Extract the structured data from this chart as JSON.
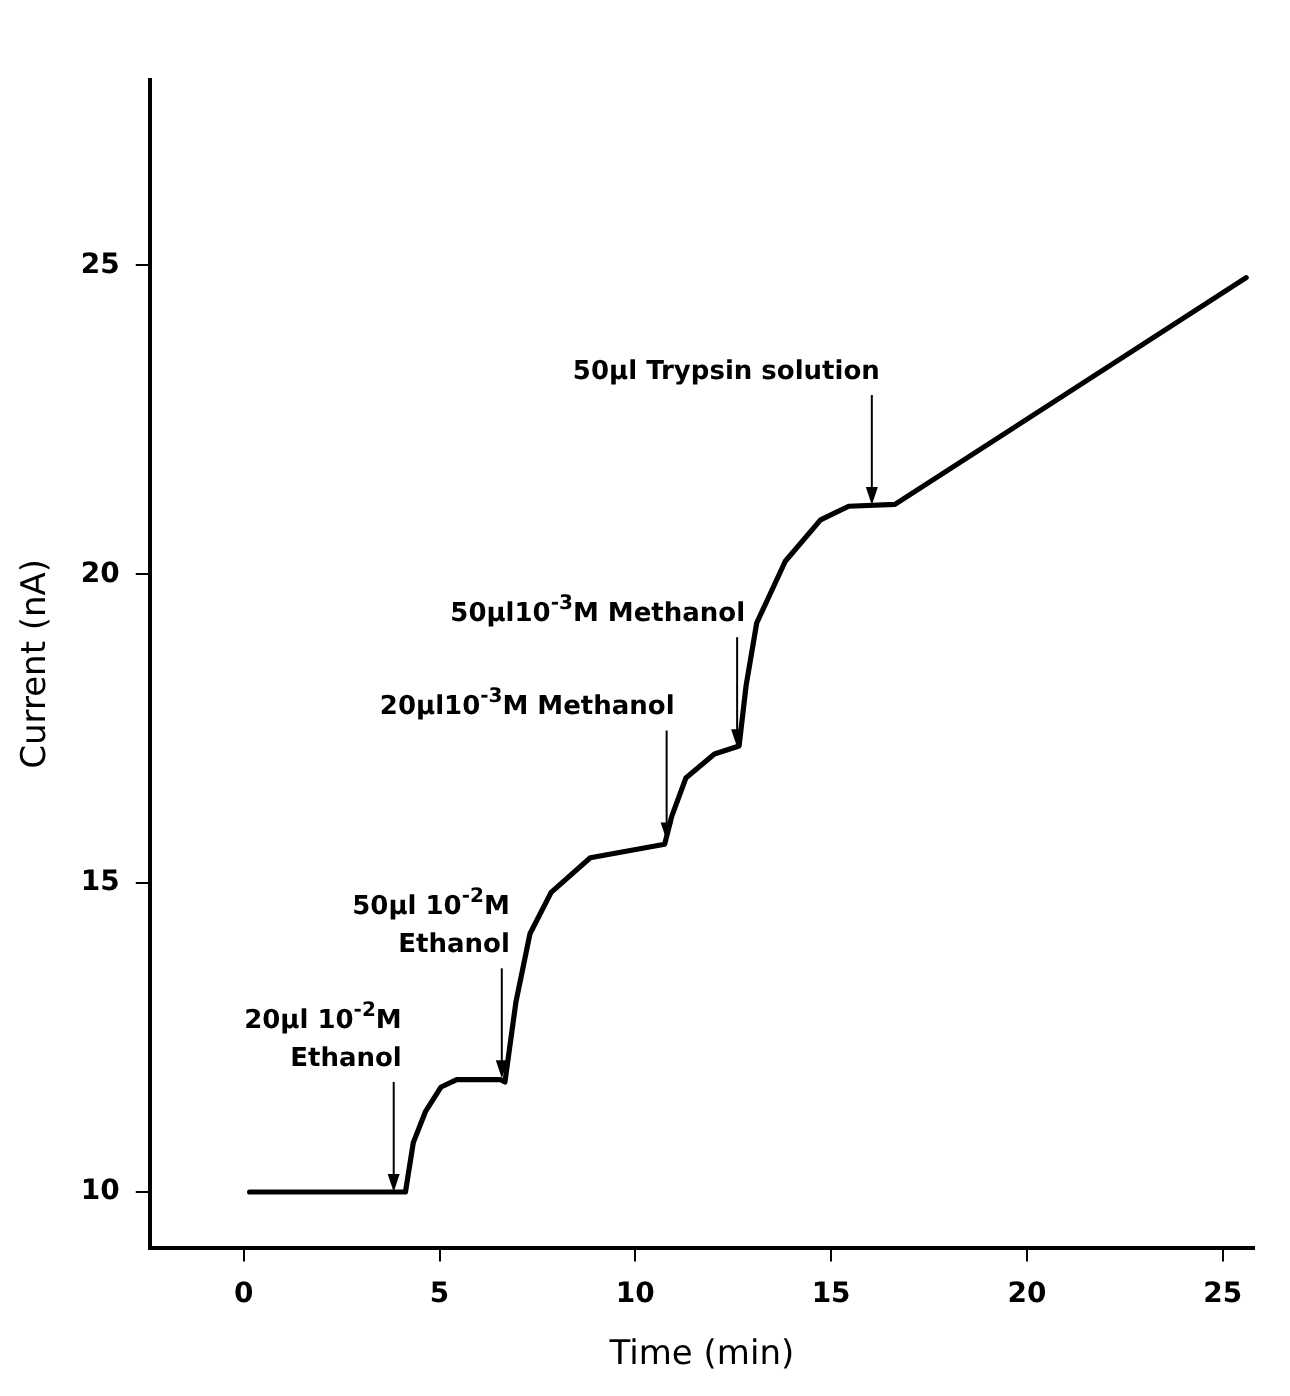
{
  "chart_data": {
    "type": "line",
    "xlabel": "Time (min)",
    "ylabel": "Current (nA)",
    "x": [
      0.15,
      4.05,
      4.13,
      4.33,
      4.64,
      5.04,
      5.44,
      6.55,
      6.67,
      6.95,
      7.31,
      7.85,
      8.85,
      10.75,
      10.93,
      11.29,
      12.02,
      12.65,
      12.83,
      13.1,
      13.83,
      14.73,
      15.45,
      16.63,
      25.6
    ],
    "values": [
      10.0,
      10.0,
      10.0,
      10.8,
      11.3,
      11.7,
      11.82,
      11.82,
      11.78,
      13.07,
      14.18,
      14.85,
      15.41,
      15.63,
      16.08,
      16.7,
      17.09,
      17.22,
      18.2,
      19.21,
      20.21,
      20.88,
      21.1,
      21.13,
      24.8
    ],
    "color": "#000000",
    "marker": "none",
    "line_style": "solid",
    "grid": false,
    "legend": false,
    "xlim": [
      -2.4,
      25.8
    ],
    "ylim": [
      9.1,
      28
    ],
    "xticks": [
      0,
      5,
      10,
      15,
      20,
      25
    ],
    "yticks": [
      10,
      15,
      20,
      25
    ],
    "annotations": [
      {
        "text": "20µl 10$^{-2}$M\nEthanol",
        "x": 3.83,
        "y": 10.0
      },
      {
        "text": "50µl 10$^{-2}$M\nEthanol",
        "x": 6.59,
        "y": 11.84
      },
      {
        "text": "20µl10$^{-3}$M Methanol",
        "x": 10.8,
        "y": 15.69
      },
      {
        "text": "50µl10$^{-3}$M Methanol",
        "x": 12.6,
        "y": 17.2
      },
      {
        "text": "50µl Trypsin solution",
        "x": 16.04,
        "y": 21.12
      }
    ]
  }
}
